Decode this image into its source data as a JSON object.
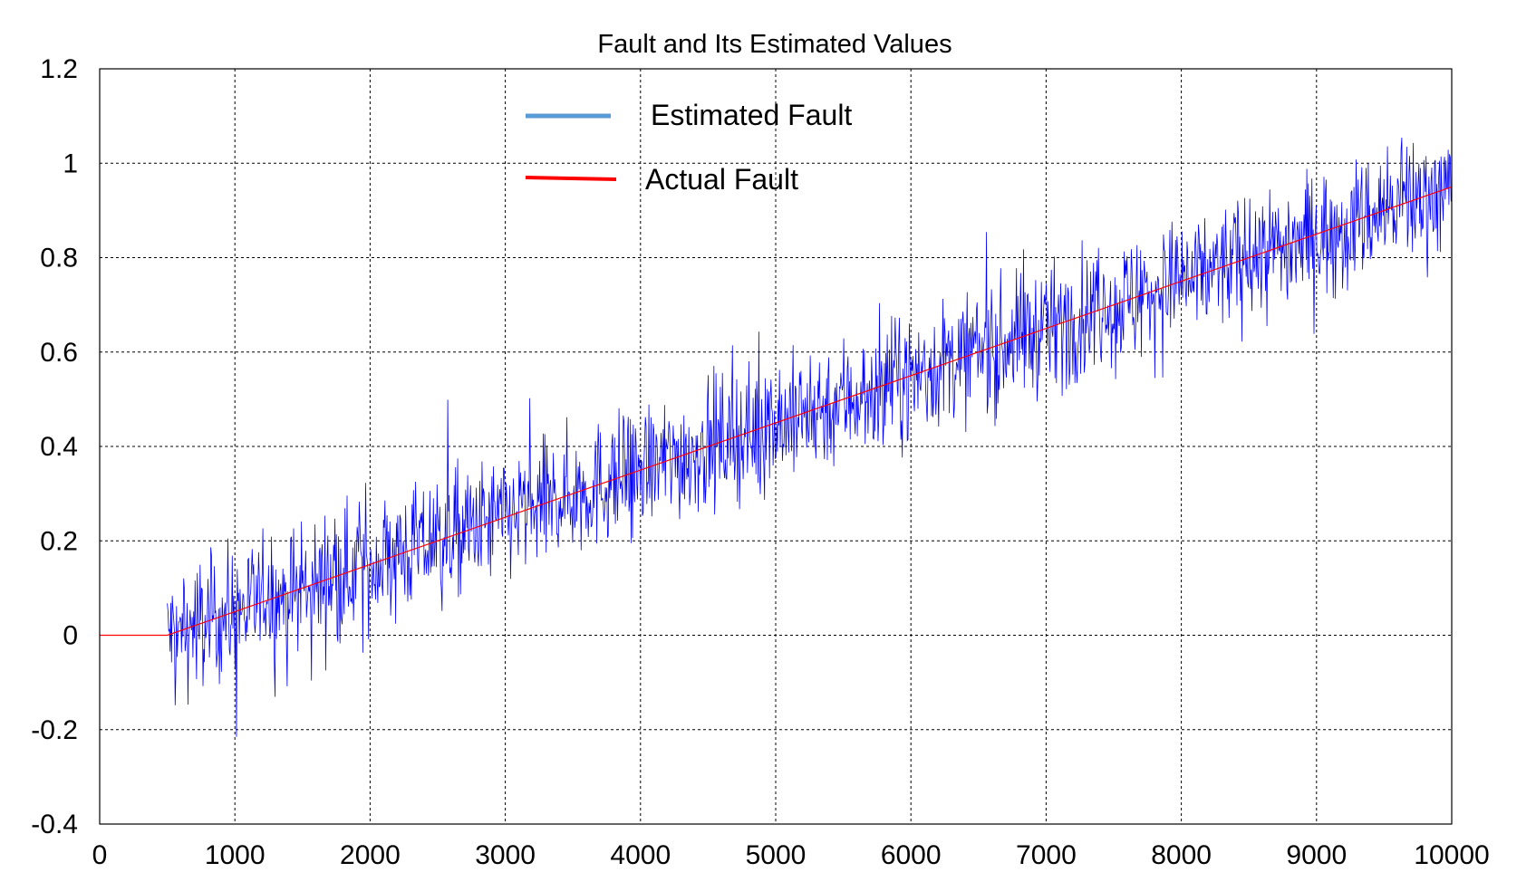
{
  "chart_data": {
    "type": "line",
    "title": "Fault and Its Estimated Values",
    "xlabel": "",
    "ylabel": "",
    "xlim": [
      0,
      10000
    ],
    "ylim": [
      -0.4,
      1.2
    ],
    "x_ticks": [
      0,
      1000,
      2000,
      3000,
      4000,
      5000,
      6000,
      7000,
      8000,
      9000,
      10000
    ],
    "y_ticks": [
      -0.4,
      -0.2,
      0,
      0.2,
      0.4,
      0.6,
      0.8,
      1,
      1.2
    ],
    "x_tick_labels": [
      "0",
      "1000",
      "2000",
      "3000",
      "4000",
      "5000",
      "6000",
      "7000",
      "8000",
      "9000",
      "10000"
    ],
    "y_tick_labels": [
      "-0.4",
      "-0.2",
      "0",
      "0.2",
      "0.4",
      "0.6",
      "0.8",
      "1",
      "1.2"
    ],
    "grid": true,
    "legend_position": "top-center",
    "series": [
      {
        "name": "Estimated Fault",
        "color": "#0000ff",
        "legend_color": "#5b9bd5",
        "style": "noisy",
        "x": [
          500,
          1000,
          2000,
          3000,
          4000,
          5000,
          6000,
          7000,
          8000,
          9000,
          10000
        ],
        "y": [
          0.0,
          0.05,
          0.15,
          0.25,
          0.35,
          0.45,
          0.55,
          0.65,
          0.75,
          0.85,
          0.95
        ],
        "noise_range": 0.12
      },
      {
        "name": "Actual Fault",
        "color": "#ff0000",
        "legend_color": "#ff0000",
        "style": "line",
        "x": [
          0,
          500,
          10000
        ],
        "y": [
          0,
          0,
          0.95
        ]
      }
    ]
  }
}
